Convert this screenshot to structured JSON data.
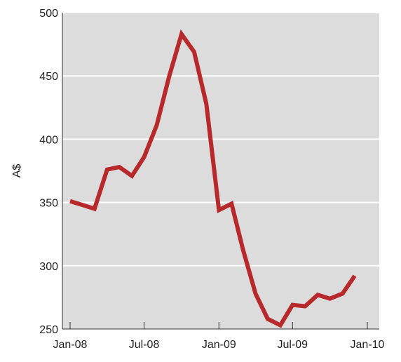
{
  "chart_data": {
    "type": "line",
    "title": "",
    "xlabel": "",
    "ylabel": "A$",
    "ylim": [
      250,
      500
    ],
    "y_ticks": [
      250,
      300,
      350,
      400,
      450,
      500
    ],
    "x_range": [
      "2008-01-01",
      "2010-01-01"
    ],
    "x_ticks": [
      {
        "date": "2008-01-01",
        "label": "Jan-08"
      },
      {
        "date": "2008-07-01",
        "label": "Jul-08"
      },
      {
        "date": "2009-01-01",
        "label": "Jan-09"
      },
      {
        "date": "2009-07-01",
        "label": "Jul-09"
      },
      {
        "date": "2010-01-01",
        "label": "Jan-10"
      }
    ],
    "grid": true,
    "plot_background": "#dcdcdc",
    "series": [
      {
        "color": "#b8292b",
        "points": [
          {
            "x": "2008-01-01",
            "y": 351
          },
          {
            "x": "2008-02-01",
            "y": 348
          },
          {
            "x": "2008-03-01",
            "y": 345
          },
          {
            "x": "2008-04-01",
            "y": 376
          },
          {
            "x": "2008-05-01",
            "y": 378
          },
          {
            "x": "2008-06-01",
            "y": 371
          },
          {
            "x": "2008-07-01",
            "y": 386
          },
          {
            "x": "2008-08-01",
            "y": 411
          },
          {
            "x": "2008-09-01",
            "y": 450
          },
          {
            "x": "2008-10-01",
            "y": 483
          },
          {
            "x": "2008-11-01",
            "y": 469
          },
          {
            "x": "2008-12-01",
            "y": 428
          },
          {
            "x": "2009-01-01",
            "y": 344
          },
          {
            "x": "2009-02-01",
            "y": 349
          },
          {
            "x": "2009-03-01",
            "y": 313
          },
          {
            "x": "2009-04-01",
            "y": 278
          },
          {
            "x": "2009-05-01",
            "y": 258
          },
          {
            "x": "2009-06-01",
            "y": 253
          },
          {
            "x": "2009-07-01",
            "y": 269
          },
          {
            "x": "2009-08-01",
            "y": 268
          },
          {
            "x": "2009-09-01",
            "y": 277
          },
          {
            "x": "2009-10-01",
            "y": 274
          },
          {
            "x": "2009-11-01",
            "y": 278
          },
          {
            "x": "2009-12-01",
            "y": 292
          }
        ]
      }
    ]
  }
}
